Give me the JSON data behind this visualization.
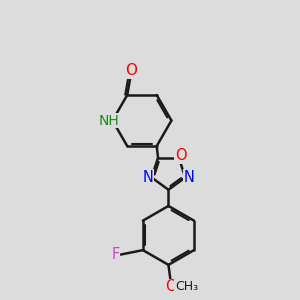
{
  "bg": "#dcdcdc",
  "bond_color": "#1a1a1a",
  "lw": 1.8,
  "atom_colors": {
    "O": "#ff0000",
    "N": "#0000ff",
    "F": "#cc44cc",
    "NH": "#1a8a1a",
    "C": "#1a1a1a"
  },
  "fs": 10.5
}
